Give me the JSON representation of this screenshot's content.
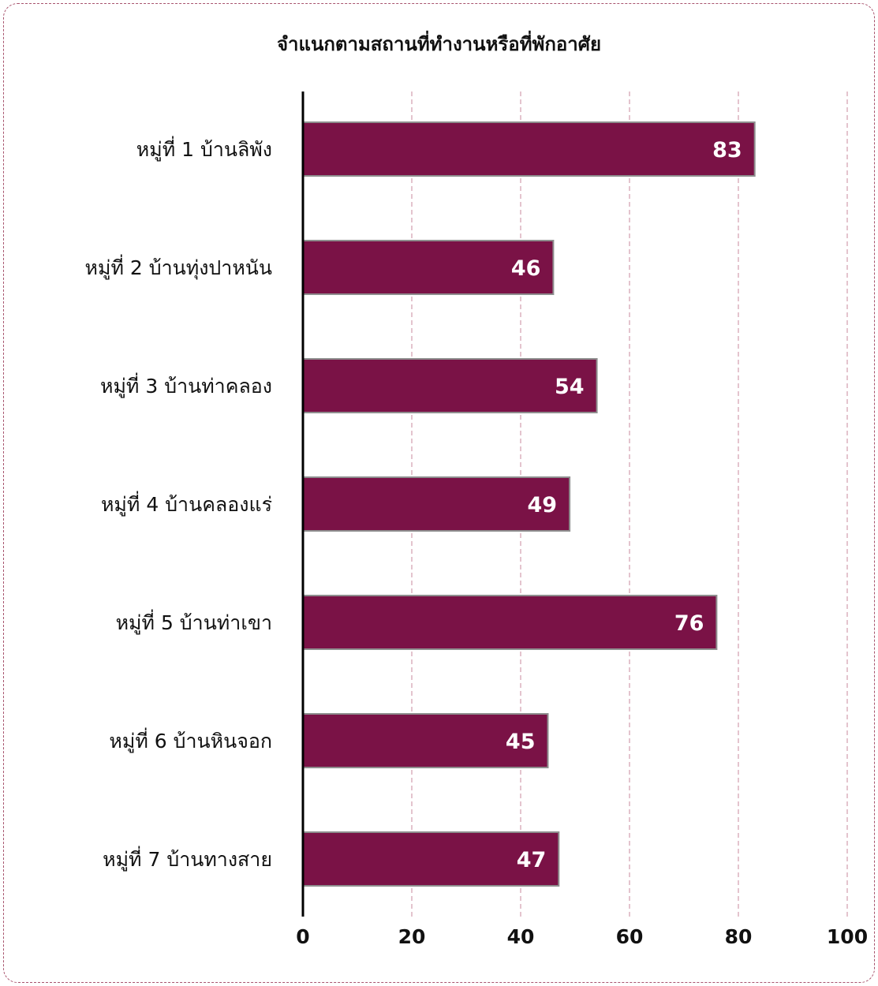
{
  "chart_data": {
    "type": "bar",
    "orientation": "horizontal",
    "title": "จำแนกตามสถานที่ทำงานหรือที่พักอาศัย",
    "xlabel": "",
    "ylabel": "",
    "categories": [
      "หมู่ที่ 1 บ้านลิพัง",
      "หมู่ที่ 2 บ้านทุ่งปาหนัน",
      "หมู่ที่ 3 บ้านท่าคลอง",
      "หมู่ที่ 4 บ้านคลองแร่",
      "หมู่ที่ 5 บ้านท่าเขา",
      "หมู่ที่ 6 บ้านหินจอก",
      "หมู่ที่ 7 บ้านทางสาย"
    ],
    "values": [
      83,
      46,
      54,
      49,
      76,
      45,
      47
    ],
    "value_labels": [
      "83",
      "46",
      "54",
      "49",
      "76",
      "45",
      "47"
    ],
    "xlim": [
      0,
      100
    ],
    "x_ticks": [
      0,
      20,
      40,
      60,
      80,
      100
    ],
    "x_tick_labels": [
      "0",
      "20",
      "40",
      "60",
      "80",
      "100"
    ],
    "grid": "vertical dashed",
    "legend": "none",
    "colors": {
      "bar": "#7a1246",
      "bar_border": "#8e8e8e",
      "grid": "#c98a9e",
      "axis": "#000000",
      "frame": "#a8536d",
      "value_label": "#ffffff",
      "text": "#111111"
    }
  }
}
